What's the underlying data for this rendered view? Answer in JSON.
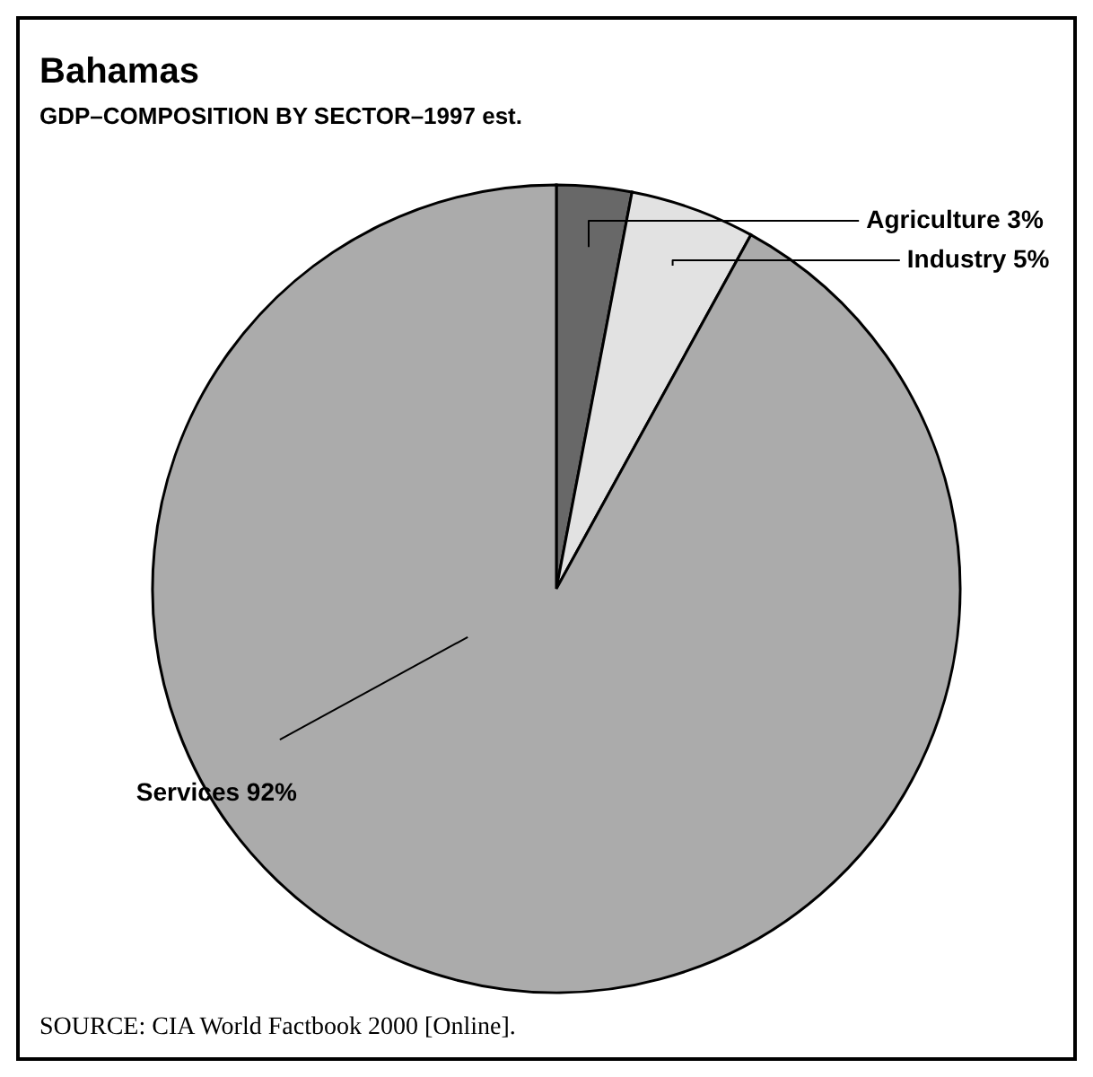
{
  "chart_data": {
    "type": "pie",
    "title": "Bahamas",
    "subtitle": "GDP–COMPOSITION BY SECTOR–1997 est.",
    "categories": [
      "Agriculture",
      "Industry",
      "Services"
    ],
    "values": [
      3,
      5,
      92
    ],
    "colors": [
      "#686868",
      "#e2e2e2",
      "#ababab"
    ],
    "value_labels": [
      "3%",
      "5%",
      "92%"
    ],
    "annotations": [
      "SOURCE: CIA World Factbook 2000 [Online]."
    ]
  }
}
